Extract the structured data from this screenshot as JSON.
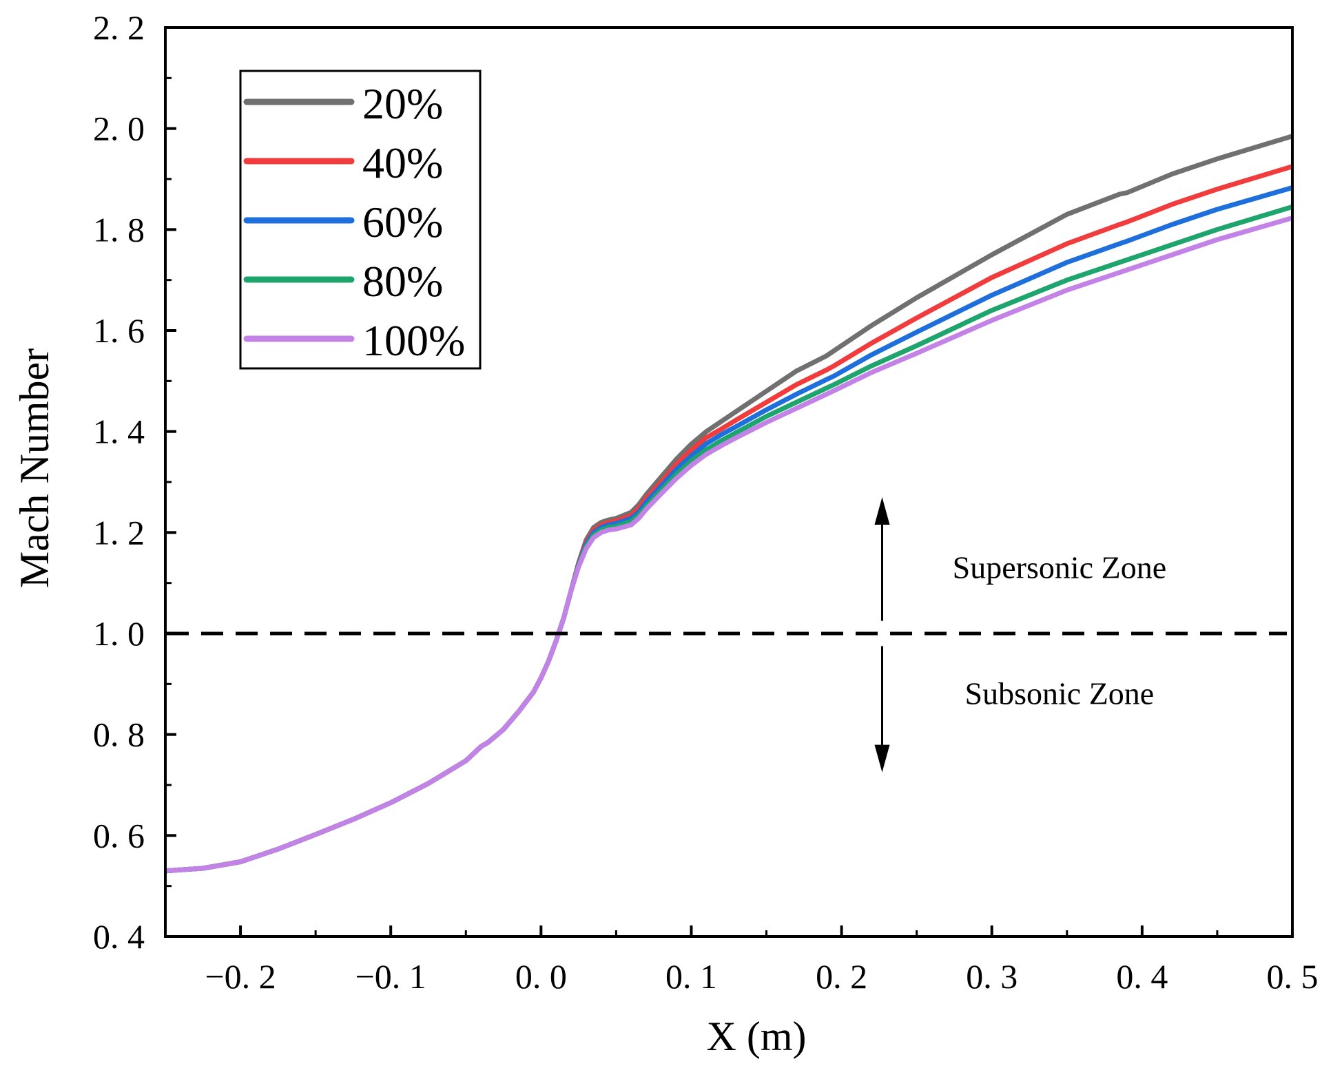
{
  "chart_data": {
    "type": "line",
    "title": "",
    "xlabel": "X (m)",
    "ylabel": "Mach Number",
    "xlim": [
      -0.25,
      0.5
    ],
    "ylim": [
      0.4,
      2.2
    ],
    "xticks": [
      -0.2,
      -0.1,
      0.0,
      0.1,
      0.2,
      0.3,
      0.4,
      0.5
    ],
    "xtick_labels": [
      "−0. 2",
      "−0. 1",
      "0. 0",
      "0. 1",
      "0. 2",
      "0. 3",
      "0. 4",
      "0. 5"
    ],
    "yticks": [
      0.4,
      0.6,
      0.8,
      1.0,
      1.2,
      1.4,
      1.6,
      1.8,
      2.0,
      2.2
    ],
    "ytick_labels": [
      "0. 4",
      "0. 6",
      "0. 8",
      "1. 0",
      "1. 2",
      "1. 4",
      "1. 6",
      "1. 8",
      "2. 0",
      "2. 2"
    ],
    "grid": false,
    "legend_position": "top-left",
    "x": [
      -0.25,
      -0.225,
      -0.2,
      -0.175,
      -0.15,
      -0.125,
      -0.1,
      -0.075,
      -0.05,
      -0.04,
      -0.035,
      -0.025,
      -0.015,
      -0.005,
      0.0,
      0.005,
      0.01,
      0.015,
      0.02,
      0.025,
      0.03,
      0.035,
      0.04,
      0.045,
      0.05,
      0.06,
      0.065,
      0.07,
      0.08,
      0.09,
      0.1,
      0.11,
      0.12,
      0.13,
      0.15,
      0.17,
      0.19,
      0.195,
      0.22,
      0.25,
      0.3,
      0.35,
      0.385,
      0.39,
      0.42,
      0.45,
      0.5
    ],
    "series": [
      {
        "name": "20%",
        "color": "#707070",
        "values": [
          0.53,
          0.535,
          0.548,
          0.573,
          0.602,
          0.632,
          0.665,
          0.703,
          0.748,
          0.776,
          0.785,
          0.81,
          0.845,
          0.884,
          0.912,
          0.945,
          0.985,
          1.03,
          1.085,
          1.14,
          1.185,
          1.21,
          1.22,
          1.225,
          1.228,
          1.24,
          1.255,
          1.275,
          1.31,
          1.345,
          1.375,
          1.4,
          1.42,
          1.44,
          1.48,
          1.52,
          1.55,
          1.56,
          1.61,
          1.665,
          1.75,
          1.83,
          1.87,
          1.873,
          1.91,
          1.94,
          1.985
        ]
      },
      {
        "name": "40%",
        "color": "#f03c3c",
        "values": [
          0.53,
          0.535,
          0.548,
          0.573,
          0.602,
          0.632,
          0.665,
          0.703,
          0.748,
          0.776,
          0.785,
          0.81,
          0.845,
          0.884,
          0.912,
          0.945,
          0.985,
          1.03,
          1.085,
          1.138,
          1.18,
          1.205,
          1.215,
          1.22,
          1.223,
          1.234,
          1.248,
          1.268,
          1.3,
          1.335,
          1.363,
          1.388,
          1.405,
          1.423,
          1.458,
          1.493,
          1.522,
          1.53,
          1.575,
          1.625,
          1.705,
          1.772,
          1.81,
          1.815,
          1.85,
          1.88,
          1.925
        ]
      },
      {
        "name": "60%",
        "color": "#1e6fdc",
        "values": [
          0.53,
          0.535,
          0.548,
          0.573,
          0.602,
          0.632,
          0.665,
          0.703,
          0.748,
          0.776,
          0.785,
          0.81,
          0.845,
          0.884,
          0.912,
          0.945,
          0.985,
          1.03,
          1.085,
          1.136,
          1.176,
          1.2,
          1.21,
          1.215,
          1.218,
          1.228,
          1.24,
          1.26,
          1.292,
          1.325,
          1.352,
          1.376,
          1.394,
          1.41,
          1.443,
          1.474,
          1.503,
          1.51,
          1.552,
          1.597,
          1.67,
          1.735,
          1.772,
          1.777,
          1.81,
          1.84,
          1.883
        ]
      },
      {
        "name": "80%",
        "color": "#1ea56e",
        "values": [
          0.53,
          0.535,
          0.548,
          0.573,
          0.602,
          0.632,
          0.665,
          0.703,
          0.748,
          0.776,
          0.785,
          0.81,
          0.845,
          0.884,
          0.912,
          0.945,
          0.985,
          1.03,
          1.085,
          1.134,
          1.172,
          1.195,
          1.205,
          1.21,
          1.212,
          1.222,
          1.234,
          1.252,
          1.284,
          1.315,
          1.342,
          1.364,
          1.382,
          1.398,
          1.43,
          1.458,
          1.486,
          1.493,
          1.53,
          1.57,
          1.64,
          1.7,
          1.735,
          1.74,
          1.77,
          1.8,
          1.845
        ]
      },
      {
        "name": "100%",
        "color": "#c382e6",
        "values": [
          0.53,
          0.535,
          0.548,
          0.573,
          0.602,
          0.632,
          0.665,
          0.703,
          0.748,
          0.776,
          0.785,
          0.81,
          0.845,
          0.884,
          0.912,
          0.945,
          0.985,
          1.03,
          1.085,
          1.132,
          1.168,
          1.19,
          1.2,
          1.205,
          1.207,
          1.215,
          1.228,
          1.246,
          1.277,
          1.307,
          1.333,
          1.355,
          1.372,
          1.388,
          1.418,
          1.446,
          1.474,
          1.481,
          1.517,
          1.555,
          1.62,
          1.68,
          1.715,
          1.72,
          1.75,
          1.78,
          1.823
        ]
      }
    ],
    "reference_line": {
      "y": 1.0,
      "style": "dashed",
      "color": "#000000"
    },
    "annotations": [
      {
        "text": "Supersonic Zone",
        "x": 0.345,
        "y": 1.11
      },
      {
        "text": "Subsonic Zone",
        "x": 0.345,
        "y": 0.86
      }
    ],
    "arrows": [
      {
        "x": 0.227,
        "from_y": 1.025,
        "to_y": 1.27
      },
      {
        "x": 0.227,
        "from_y": 0.975,
        "to_y": 0.725
      }
    ]
  }
}
